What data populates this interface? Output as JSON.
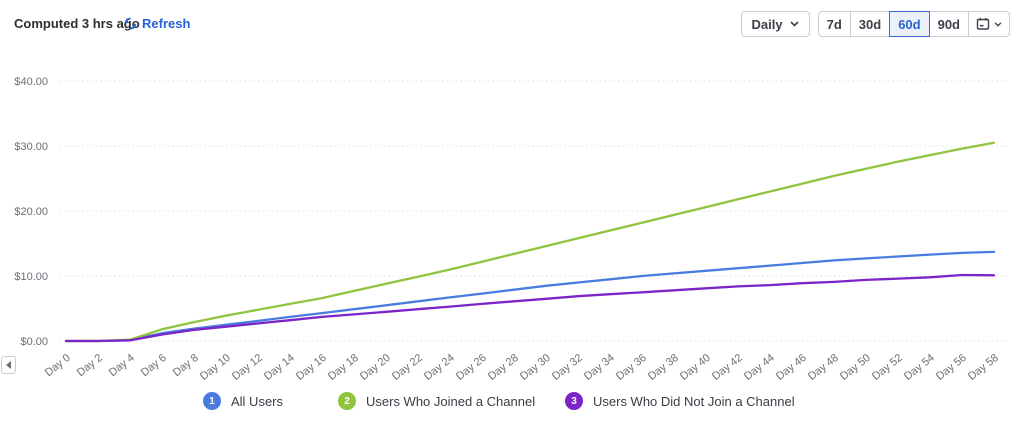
{
  "header": {
    "computed_label": "Computed 3 hrs ago",
    "refresh_label": "Refresh"
  },
  "controls": {
    "granularity_label": "Daily",
    "ranges": [
      "7d",
      "30d",
      "60d",
      "90d"
    ],
    "selected_range": "60d"
  },
  "icons": {
    "refresh": "refresh-circular-arrows",
    "granularity_chevron": "chevron-down",
    "calendar": "calendar",
    "calendar_chevron": "chevron-down",
    "scroll_left": "left-arrow"
  },
  "chart_data": {
    "type": "line",
    "title": "",
    "xlabel": "",
    "ylabel": "",
    "ylim": [
      0,
      40
    ],
    "grid": "horizontal-dotted",
    "legend_position": "bottom",
    "x_days": [
      0,
      2,
      4,
      6,
      8,
      10,
      12,
      14,
      16,
      18,
      20,
      22,
      24,
      26,
      28,
      30,
      32,
      34,
      36,
      38,
      40,
      42,
      44,
      46,
      48,
      50,
      52,
      54,
      56,
      58
    ],
    "x_tick_labels": [
      "Day 0",
      "Day 2",
      "Day 4",
      "Day 6",
      "Day 8",
      "Day 10",
      "Day 12",
      "Day 14",
      "Day 16",
      "Day 18",
      "Day 20",
      "Day 22",
      "Day 24",
      "Day 26",
      "Day 28",
      "Day 30",
      "Day 32",
      "Day 34",
      "Day 36",
      "Day 38",
      "Day 40",
      "Day 42",
      "Day 44",
      "Day 46",
      "Day 48",
      "Day 50",
      "Day 52",
      "Day 54",
      "Day 56",
      "Day 58"
    ],
    "y_tick_values": [
      0,
      10,
      20,
      30,
      40
    ],
    "y_tick_labels": [
      "$0.00",
      "$10.00",
      "$20.00",
      "$30.00",
      "$40.00"
    ],
    "series": [
      {
        "name": "All Users",
        "legend_number": "1",
        "color": "#4a7cdf",
        "values": [
          0,
          0,
          0.15,
          1.2,
          1.9,
          2.5,
          3.1,
          3.7,
          4.3,
          4.9,
          5.5,
          6.1,
          6.7,
          7.3,
          7.9,
          8.5,
          9.0,
          9.5,
          10.0,
          10.4,
          10.8,
          11.2,
          11.6,
          12.0,
          12.4,
          12.7,
          13.0,
          13.3,
          13.55,
          13.7
        ]
      },
      {
        "name": "Users Who Joined a Channel",
        "legend_number": "2",
        "color": "#90c43f",
        "values": [
          0,
          0,
          0.2,
          1.8,
          2.9,
          3.9,
          4.8,
          5.7,
          6.6,
          7.7,
          8.8,
          9.9,
          11.0,
          12.2,
          13.4,
          14.6,
          15.8,
          17.0,
          18.2,
          19.4,
          20.6,
          21.8,
          23.0,
          24.2,
          25.4,
          26.5,
          27.6,
          28.6,
          29.6,
          30.5
        ]
      },
      {
        "name": "Users Who Did Not Join a Channel",
        "legend_number": "3",
        "color": "#7b24c7",
        "values": [
          0,
          0,
          0.1,
          1.0,
          1.7,
          2.2,
          2.7,
          3.2,
          3.7,
          4.1,
          4.5,
          4.9,
          5.3,
          5.7,
          6.1,
          6.5,
          6.9,
          7.2,
          7.5,
          7.8,
          8.1,
          8.4,
          8.6,
          8.9,
          9.1,
          9.4,
          9.6,
          9.8,
          10.15,
          10.1
        ]
      }
    ]
  }
}
